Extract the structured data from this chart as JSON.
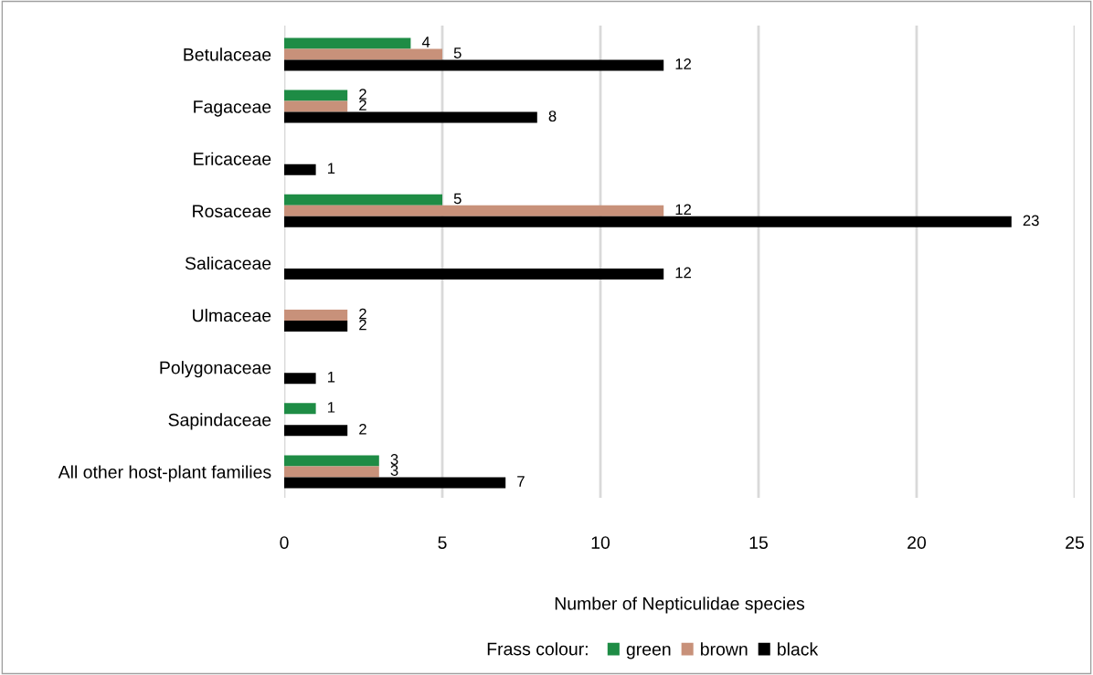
{
  "chart_data": {
    "type": "bar",
    "orientation": "horizontal",
    "categories": [
      "Betulaceae",
      "Fagaceae",
      "Ericaceae",
      "Rosaceae",
      "Salicaceae",
      "Ulmaceae",
      "Polygonaceae",
      "Sapindaceae",
      "All other host-plant families"
    ],
    "series": [
      {
        "name": "green",
        "color": "#1e8c45",
        "values": [
          4,
          2,
          null,
          5,
          null,
          null,
          null,
          1,
          3
        ]
      },
      {
        "name": "brown",
        "color": "#c8917a",
        "values": [
          5,
          2,
          null,
          12,
          null,
          2,
          null,
          null,
          3
        ]
      },
      {
        "name": "black",
        "color": "#000000",
        "values": [
          12,
          8,
          1,
          23,
          12,
          2,
          1,
          2,
          7
        ]
      }
    ],
    "xlabel": "Number of Nepticulidae species",
    "legend_title": "Frass colour:",
    "xlim": [
      0,
      25
    ],
    "xticks": [
      0,
      5,
      10,
      15,
      20,
      25
    ],
    "grid": "x",
    "legend": "bottom",
    "data_labels": true
  }
}
